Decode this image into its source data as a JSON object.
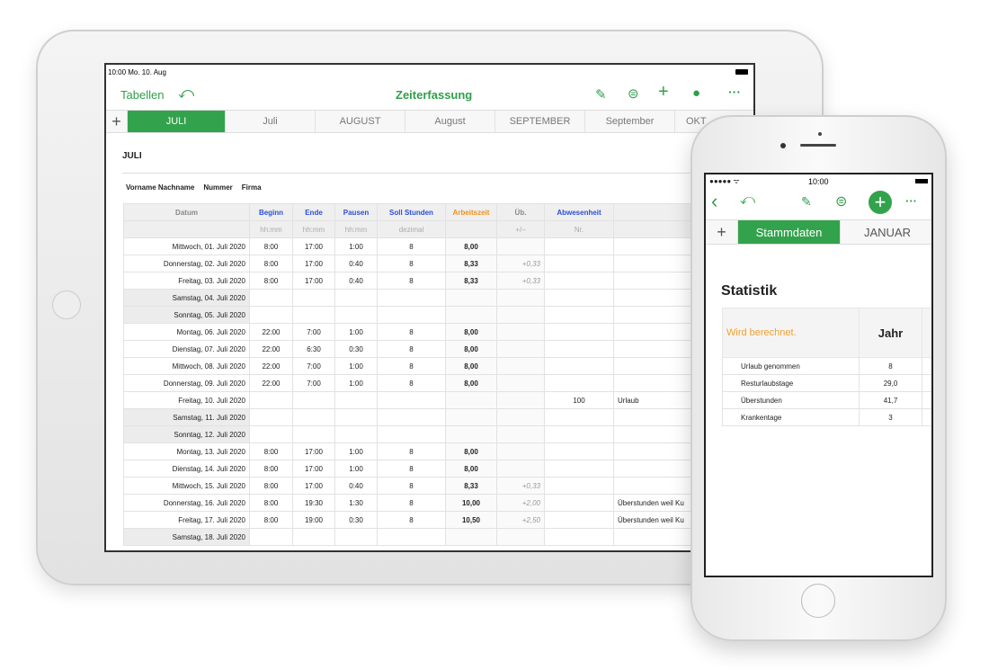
{
  "ipad": {
    "status": {
      "time_date": "10:00  Mo. 10. Aug"
    },
    "toolbar": {
      "back_label": "Tabellen",
      "title": "Zeiterfassung",
      "icons": [
        "undo-icon",
        "paintbrush-icon",
        "filter-icon",
        "plus-icon",
        "collaborate-icon",
        "more-icon"
      ]
    },
    "tabs": [
      "JULI",
      "Juli",
      "AUGUST",
      "August",
      "SEPTEMBER",
      "September",
      "OKT"
    ],
    "sheet_title": "JULI",
    "info_labels": [
      "Vorname Nachname",
      "Nummer",
      "Firma"
    ],
    "columns": [
      "Datum",
      "Beginn",
      "Ende",
      "Pausen",
      "Soll Stunden",
      "Arbeitszeit",
      "Üb.",
      "Abwesenheit",
      ""
    ],
    "subheaders": [
      "",
      "hh:mm",
      "hh:mm",
      "hh:mm",
      "dezimal",
      "",
      "+/–",
      "Nr.",
      ""
    ],
    "rows": [
      [
        "Mittwoch, 01. Juli 2020",
        "8:00",
        "17:00",
        "1:00",
        "8",
        "8,00",
        "",
        "",
        ""
      ],
      [
        "Donnerstag, 02. Juli 2020",
        "8:00",
        "17:00",
        "0:40",
        "8",
        "8,33",
        "+0,33",
        "",
        ""
      ],
      [
        "Freitag, 03. Juli 2020",
        "8:00",
        "17:00",
        "0:40",
        "8",
        "8,33",
        "+0,33",
        "",
        ""
      ],
      [
        "Samstag, 04. Juli 2020",
        "",
        "",
        "",
        "",
        "",
        "",
        "",
        ""
      ],
      [
        "Sonntag, 05. Juli 2020",
        "",
        "",
        "",
        "",
        "",
        "",
        "",
        ""
      ],
      [
        "Montag, 06. Juli 2020",
        "22:00",
        "7:00",
        "1:00",
        "8",
        "8,00",
        "",
        "",
        ""
      ],
      [
        "Dienstag, 07. Juli 2020",
        "22:00",
        "6:30",
        "0:30",
        "8",
        "8,00",
        "",
        "",
        ""
      ],
      [
        "Mittwoch, 08. Juli 2020",
        "22:00",
        "7:00",
        "1:00",
        "8",
        "8,00",
        "",
        "",
        ""
      ],
      [
        "Donnerstag, 09. Juli 2020",
        "22:00",
        "7:00",
        "1:00",
        "8",
        "8,00",
        "",
        "",
        ""
      ],
      [
        "Freitag, 10. Juli 2020",
        "",
        "",
        "",
        "",
        "",
        "",
        "100",
        "Urlaub"
      ],
      [
        "Samstag, 11. Juli 2020",
        "",
        "",
        "",
        "",
        "",
        "",
        "",
        ""
      ],
      [
        "Sonntag, 12. Juli 2020",
        "",
        "",
        "",
        "",
        "",
        "",
        "",
        ""
      ],
      [
        "Montag, 13. Juli 2020",
        "8:00",
        "17:00",
        "1:00",
        "8",
        "8,00",
        "",
        "",
        ""
      ],
      [
        "Dienstag, 14. Juli 2020",
        "8:00",
        "17:00",
        "1:00",
        "8",
        "8,00",
        "",
        "",
        ""
      ],
      [
        "Mittwoch, 15. Juli 2020",
        "8:00",
        "17:00",
        "0:40",
        "8",
        "8,33",
        "+0,33",
        "",
        ""
      ],
      [
        "Donnerstag, 16. Juli 2020",
        "8:00",
        "19:30",
        "1:30",
        "8",
        "10,00",
        "+2,00",
        "",
        "Überstunden weil Ku"
      ],
      [
        "Freitag, 17. Juli 2020",
        "8:00",
        "19:00",
        "0:30",
        "8",
        "10,50",
        "+2,50",
        "",
        "Überstunden weil Ku"
      ],
      [
        "Samstag, 18. Juli 2020",
        "",
        "",
        "",
        "",
        "",
        "",
        "",
        ""
      ]
    ]
  },
  "iphone": {
    "status": {
      "time": "10:00"
    },
    "tabs": [
      "Stammdaten",
      "JANUAR"
    ],
    "title": "Statistik",
    "table": {
      "header_note": "Wird berechnet.",
      "header_col": "Jahr",
      "rows": [
        [
          "Urlaub genommen",
          "8"
        ],
        [
          "Resturlaubstage",
          "29,0"
        ],
        [
          "Überstunden",
          "41,7"
        ],
        [
          "Krankentage",
          "3"
        ]
      ]
    }
  },
  "colors": {
    "accent": "#32a34c",
    "blue_header": "#2c4fd6",
    "orange_header": "#f0901e"
  }
}
